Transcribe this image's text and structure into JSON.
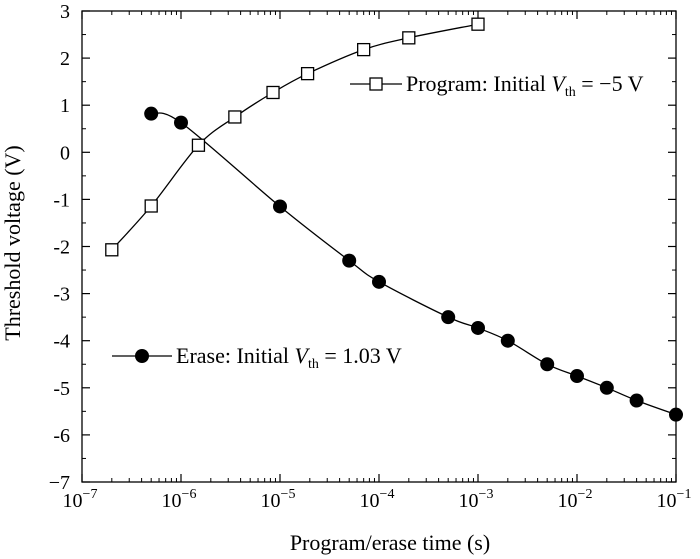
{
  "chart_data": {
    "type": "scatter",
    "xlabel": "Program/erase time (s)",
    "ylabel": "Threshold voltage (V)",
    "xscale": "log",
    "xlim": [
      1e-07,
      0.1
    ],
    "ylim": [
      -7,
      3
    ],
    "grid": false,
    "legend_placement": "inside",
    "x_ticks": [
      {
        "base": "10",
        "exp": "−7",
        "value": 1e-07
      },
      {
        "base": "10",
        "exp": "−6",
        "value": 1e-06
      },
      {
        "base": "10",
        "exp": "−5",
        "value": 1e-05
      },
      {
        "base": "10",
        "exp": "−4",
        "value": 0.0001
      },
      {
        "base": "10",
        "exp": "−3",
        "value": 0.001
      },
      {
        "base": "10",
        "exp": "−2",
        "value": 0.01
      },
      {
        "base": "10",
        "exp": "−1",
        "value": 0.1
      }
    ],
    "y_ticks": [
      {
        "label": "3",
        "value": 3
      },
      {
        "label": "2",
        "value": 2
      },
      {
        "label": "1",
        "value": 1
      },
      {
        "label": "0",
        "value": 0
      },
      {
        "label": "-1",
        "value": -1
      },
      {
        "label": "-2",
        "value": -2
      },
      {
        "label": "-3",
        "value": -3
      },
      {
        "label": "-4",
        "value": -4
      },
      {
        "label": "-5",
        "value": -5
      },
      {
        "label": "-6",
        "value": -6
      },
      {
        "label": "−7",
        "value": -7
      }
    ],
    "series": [
      {
        "name_parts": {
          "prefix": "Program: Initial ",
          "var": "V",
          "sub": "th",
          "suffix": " = −5 V"
        },
        "marker": "open-square",
        "x": [
          2e-07,
          5e-07,
          1.5e-06,
          3.5e-06,
          8.5e-06,
          1.9e-05,
          7e-05,
          0.0002,
          0.001
        ],
        "y": [
          -2.07,
          -1.14,
          0.15,
          0.75,
          1.27,
          1.67,
          2.18,
          2.43,
          2.72
        ]
      },
      {
        "name_parts": {
          "prefix": "Erase: Initial ",
          "var": "V",
          "sub": "th",
          "suffix": " = 1.03 V"
        },
        "marker": "filled-circle",
        "x": [
          5e-07,
          1e-06,
          1e-05,
          5e-05,
          0.0001,
          0.0005,
          0.001,
          0.002,
          0.005,
          0.01,
          0.02,
          0.04,
          0.1
        ],
        "y": [
          0.82,
          0.63,
          -1.15,
          -2.3,
          -2.75,
          -3.5,
          -3.73,
          -4.0,
          -4.5,
          -4.75,
          -5.0,
          -5.27,
          -5.57
        ]
      }
    ]
  }
}
